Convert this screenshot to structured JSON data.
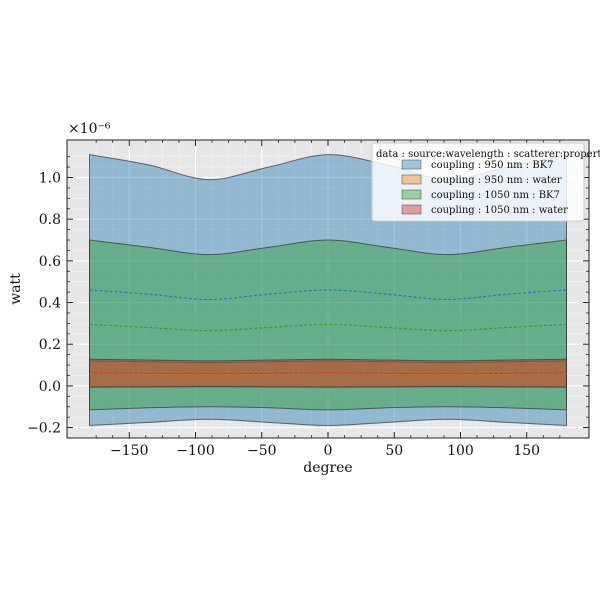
{
  "chart_data": {
    "type": "area",
    "title": "",
    "xlabel": "degree",
    "ylabel": "watt",
    "y_scale_label": "×10⁻⁶",
    "xlim": [
      -197,
      197
    ],
    "ylim": [
      -0.25,
      1.18
    ],
    "x_ticks": [
      -150,
      -100,
      -50,
      0,
      50,
      100,
      150
    ],
    "x_tick_labels": [
      "−150",
      "−100",
      "−50",
      "0",
      "50",
      "100",
      "150"
    ],
    "y_ticks": [
      -0.2,
      0.0,
      0.2,
      0.4,
      0.6,
      0.8,
      1.0
    ],
    "y_tick_labels": [
      "−0.2",
      "0.0",
      "0.2",
      "0.4",
      "0.6",
      "0.8",
      "1.0"
    ],
    "grid": true,
    "legend_placement": "top-right",
    "legend_title": "data : source:wavelength : scatterer:property",
    "x": [
      -180,
      -135,
      -90,
      -45,
      0,
      45,
      90,
      135,
      180
    ],
    "series": [
      {
        "name": "coupling : 950 nm : BK7",
        "color": "#1f77b4",
        "mean": [
          0.46,
          0.44,
          0.415,
          0.44,
          0.46,
          0.44,
          0.415,
          0.44,
          0.46
        ],
        "upper": [
          1.11,
          1.06,
          0.99,
          1.05,
          1.11,
          1.06,
          0.99,
          1.05,
          1.11
        ],
        "lower": [
          -0.19,
          -0.175,
          -0.16,
          -0.175,
          -0.19,
          -0.175,
          -0.16,
          -0.175,
          -0.19
        ]
      },
      {
        "name": "coupling : 950 nm : water",
        "color": "#ff7f0e",
        "mean": [
          0.06,
          0.058,
          0.055,
          0.058,
          0.06,
          0.058,
          0.055,
          0.058,
          0.06
        ],
        "upper": [
          0.12,
          0.116,
          0.112,
          0.116,
          0.12,
          0.116,
          0.112,
          0.116,
          0.12
        ],
        "lower": [
          -0.005,
          -0.004,
          -0.003,
          -0.004,
          -0.005,
          -0.004,
          -0.003,
          -0.004,
          -0.005
        ]
      },
      {
        "name": "coupling : 1050 nm : BK7",
        "color": "#2ca02c",
        "mean": [
          0.295,
          0.28,
          0.265,
          0.28,
          0.295,
          0.28,
          0.265,
          0.28,
          0.295
        ],
        "upper": [
          0.7,
          0.665,
          0.63,
          0.665,
          0.7,
          0.665,
          0.63,
          0.665,
          0.7
        ],
        "lower": [
          -0.115,
          -0.105,
          -0.1,
          -0.105,
          -0.115,
          -0.105,
          -0.1,
          -0.105,
          -0.115
        ]
      },
      {
        "name": "coupling : 1050 nm : water",
        "color": "#d62728",
        "mean": [
          0.062,
          0.06,
          0.058,
          0.06,
          0.062,
          0.06,
          0.058,
          0.06,
          0.062
        ],
        "upper": [
          0.128,
          0.124,
          0.12,
          0.124,
          0.128,
          0.124,
          0.12,
          0.124,
          0.128
        ],
        "lower": [
          -0.006,
          -0.005,
          -0.004,
          -0.005,
          -0.006,
          -0.005,
          -0.004,
          -0.005,
          -0.006
        ]
      }
    ]
  }
}
